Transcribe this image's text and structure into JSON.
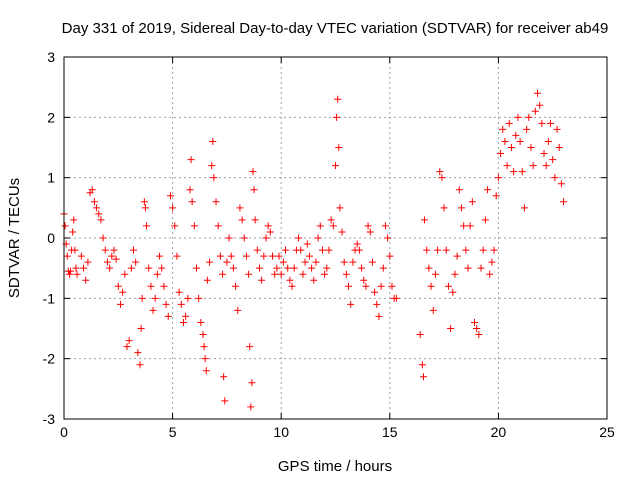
{
  "chart_data": {
    "type": "scatter",
    "title": "Day 331 of 2019, Sidereal Day-to-day VTEC variation (SDTVAR) for receiver ab49",
    "xlabel": "GPS time / hours",
    "ylabel": "SDTVAR / TECUs",
    "xlim": [
      0,
      25
    ],
    "ylim": [
      -3,
      3
    ],
    "xticks": [
      0,
      5,
      10,
      15,
      20,
      25
    ],
    "yticks": [
      -3,
      -2,
      -1,
      0,
      1,
      2,
      3
    ],
    "grid": true,
    "marker": "+",
    "marker_color": "#ff0000",
    "series": [
      {
        "name": "SDTVAR",
        "points": [
          [
            0.0,
            0.4
          ],
          [
            0.05,
            0.2
          ],
          [
            0.1,
            -0.1
          ],
          [
            0.15,
            -0.3
          ],
          [
            0.2,
            -0.55
          ],
          [
            0.25,
            -0.6
          ],
          [
            0.3,
            -0.55
          ],
          [
            0.35,
            -0.2
          ],
          [
            0.4,
            0.1
          ],
          [
            0.45,
            0.3
          ],
          [
            0.5,
            -0.2
          ],
          [
            0.55,
            -0.5
          ],
          [
            0.6,
            -0.6
          ],
          [
            0.8,
            -0.3
          ],
          [
            0.9,
            -0.5
          ],
          [
            1.0,
            -0.7
          ],
          [
            1.1,
            -0.4
          ],
          [
            1.2,
            0.75
          ],
          [
            1.3,
            0.8
          ],
          [
            1.4,
            0.6
          ],
          [
            1.5,
            0.5
          ],
          [
            1.6,
            0.4
          ],
          [
            1.7,
            0.3
          ],
          [
            1.8,
            0.0
          ],
          [
            1.9,
            -0.2
          ],
          [
            2.0,
            -0.4
          ],
          [
            2.1,
            -0.5
          ],
          [
            2.2,
            -0.3
          ],
          [
            2.3,
            -0.2
          ],
          [
            2.4,
            -0.35
          ],
          [
            2.5,
            -0.8
          ],
          [
            2.6,
            -1.1
          ],
          [
            2.7,
            -0.9
          ],
          [
            2.8,
            -0.6
          ],
          [
            2.9,
            -1.8
          ],
          [
            3.0,
            -1.7
          ],
          [
            3.1,
            -0.5
          ],
          [
            3.2,
            -0.2
          ],
          [
            3.3,
            -0.4
          ],
          [
            3.4,
            -1.9
          ],
          [
            3.5,
            -2.1
          ],
          [
            3.55,
            -1.5
          ],
          [
            3.6,
            -1.0
          ],
          [
            3.7,
            0.6
          ],
          [
            3.75,
            0.5
          ],
          [
            3.8,
            0.2
          ],
          [
            3.9,
            -0.5
          ],
          [
            4.0,
            -0.8
          ],
          [
            4.1,
            -1.2
          ],
          [
            4.2,
            -1.0
          ],
          [
            4.3,
            -0.6
          ],
          [
            4.4,
            -0.3
          ],
          [
            4.5,
            -0.5
          ],
          [
            4.6,
            -0.8
          ],
          [
            4.7,
            -1.1
          ],
          [
            4.8,
            -1.3
          ],
          [
            4.9,
            0.7
          ],
          [
            5.0,
            0.5
          ],
          [
            5.1,
            0.2
          ],
          [
            5.2,
            -0.3
          ],
          [
            5.3,
            -0.9
          ],
          [
            5.4,
            -1.1
          ],
          [
            5.5,
            -1.4
          ],
          [
            5.6,
            -1.3
          ],
          [
            5.7,
            -1.0
          ],
          [
            5.8,
            0.8
          ],
          [
            5.85,
            1.3
          ],
          [
            5.9,
            0.6
          ],
          [
            6.0,
            0.2
          ],
          [
            6.1,
            -0.5
          ],
          [
            6.2,
            -1.0
          ],
          [
            6.3,
            -1.4
          ],
          [
            6.4,
            -1.6
          ],
          [
            6.45,
            -1.8
          ],
          [
            6.5,
            -2.0
          ],
          [
            6.55,
            -2.2
          ],
          [
            6.6,
            -0.7
          ],
          [
            6.7,
            -0.4
          ],
          [
            6.8,
            1.2
          ],
          [
            6.85,
            1.6
          ],
          [
            6.9,
            1.0
          ],
          [
            7.0,
            0.6
          ],
          [
            7.1,
            0.2
          ],
          [
            7.2,
            -0.3
          ],
          [
            7.3,
            -0.6
          ],
          [
            7.35,
            -2.3
          ],
          [
            7.4,
            -2.7
          ],
          [
            7.5,
            -0.4
          ],
          [
            7.6,
            0.0
          ],
          [
            7.7,
            -0.3
          ],
          [
            7.8,
            -0.5
          ],
          [
            7.9,
            -0.8
          ],
          [
            8.0,
            -1.2
          ],
          [
            8.1,
            0.5
          ],
          [
            8.2,
            0.3
          ],
          [
            8.3,
            0.0
          ],
          [
            8.4,
            -0.3
          ],
          [
            8.5,
            -0.6
          ],
          [
            8.55,
            -1.8
          ],
          [
            8.6,
            -2.8
          ],
          [
            8.65,
            -2.4
          ],
          [
            8.7,
            1.1
          ],
          [
            8.75,
            0.8
          ],
          [
            8.8,
            0.3
          ],
          [
            8.9,
            -0.2
          ],
          [
            9.0,
            -0.5
          ],
          [
            9.1,
            -0.7
          ],
          [
            9.2,
            -0.3
          ],
          [
            9.3,
            0.0
          ],
          [
            9.4,
            0.2
          ],
          [
            9.5,
            0.1
          ],
          [
            9.6,
            -0.3
          ],
          [
            9.7,
            -0.6
          ],
          [
            9.8,
            -0.5
          ],
          [
            9.9,
            -0.3
          ],
          [
            10.0,
            -0.6
          ],
          [
            10.1,
            -0.4
          ],
          [
            10.2,
            -0.2
          ],
          [
            10.3,
            -0.5
          ],
          [
            10.4,
            -0.7
          ],
          [
            10.5,
            -0.8
          ],
          [
            10.6,
            -0.5
          ],
          [
            10.7,
            -0.2
          ],
          [
            10.8,
            0.0
          ],
          [
            10.9,
            -0.2
          ],
          [
            11.0,
            -0.6
          ],
          [
            11.1,
            -0.4
          ],
          [
            11.2,
            -0.1
          ],
          [
            11.3,
            -0.3
          ],
          [
            11.4,
            -0.5
          ],
          [
            11.5,
            -0.7
          ],
          [
            11.6,
            -0.4
          ],
          [
            11.7,
            0.0
          ],
          [
            11.8,
            0.2
          ],
          [
            11.9,
            -0.2
          ],
          [
            12.0,
            -0.6
          ],
          [
            12.1,
            -0.5
          ],
          [
            12.2,
            -0.2
          ],
          [
            12.3,
            0.3
          ],
          [
            12.4,
            0.2
          ],
          [
            12.5,
            1.2
          ],
          [
            12.55,
            2.0
          ],
          [
            12.6,
            2.3
          ],
          [
            12.65,
            1.5
          ],
          [
            12.7,
            0.5
          ],
          [
            12.8,
            0.1
          ],
          [
            12.9,
            -0.4
          ],
          [
            13.0,
            -0.6
          ],
          [
            13.1,
            -0.8
          ],
          [
            13.2,
            -1.1
          ],
          [
            13.3,
            -0.4
          ],
          [
            13.4,
            -0.2
          ],
          [
            13.5,
            -0.1
          ],
          [
            13.6,
            -0.2
          ],
          [
            13.7,
            -0.5
          ],
          [
            13.8,
            -0.7
          ],
          [
            13.9,
            -0.8
          ],
          [
            14.0,
            0.2
          ],
          [
            14.1,
            0.1
          ],
          [
            14.2,
            -0.4
          ],
          [
            14.3,
            -0.9
          ],
          [
            14.4,
            -1.1
          ],
          [
            14.5,
            -1.3
          ],
          [
            14.6,
            -0.8
          ],
          [
            14.7,
            -0.5
          ],
          [
            14.8,
            0.2
          ],
          [
            14.9,
            0.0
          ],
          [
            15.0,
            -0.3
          ],
          [
            15.1,
            -0.8
          ],
          [
            15.2,
            -1.0
          ],
          [
            15.3,
            -1.0
          ],
          [
            16.4,
            -1.6
          ],
          [
            16.5,
            -2.1
          ],
          [
            16.55,
            -2.3
          ],
          [
            16.6,
            0.3
          ],
          [
            16.7,
            -0.2
          ],
          [
            16.8,
            -0.5
          ],
          [
            16.9,
            -0.8
          ],
          [
            17.0,
            -1.2
          ],
          [
            17.1,
            -0.6
          ],
          [
            17.2,
            -0.2
          ],
          [
            17.3,
            1.1
          ],
          [
            17.4,
            1.0
          ],
          [
            17.5,
            0.5
          ],
          [
            17.6,
            -0.2
          ],
          [
            17.7,
            -0.8
          ],
          [
            17.8,
            -1.5
          ],
          [
            17.9,
            -0.9
          ],
          [
            18.0,
            -0.6
          ],
          [
            18.1,
            -0.3
          ],
          [
            18.2,
            0.8
          ],
          [
            18.3,
            0.5
          ],
          [
            18.4,
            0.2
          ],
          [
            18.5,
            -0.2
          ],
          [
            18.6,
            -0.5
          ],
          [
            18.7,
            0.2
          ],
          [
            18.8,
            0.6
          ],
          [
            18.9,
            -1.4
          ],
          [
            19.0,
            -1.5
          ],
          [
            19.1,
            -1.6
          ],
          [
            19.2,
            -0.5
          ],
          [
            19.3,
            -0.2
          ],
          [
            19.4,
            0.3
          ],
          [
            19.5,
            0.8
          ],
          [
            19.6,
            -0.6
          ],
          [
            19.7,
            -0.4
          ],
          [
            19.8,
            -0.2
          ],
          [
            19.9,
            0.7
          ],
          [
            20.0,
            1.0
          ],
          [
            20.1,
            1.4
          ],
          [
            20.2,
            1.8
          ],
          [
            20.3,
            1.6
          ],
          [
            20.4,
            1.2
          ],
          [
            20.5,
            1.9
          ],
          [
            20.6,
            1.5
          ],
          [
            20.7,
            1.1
          ],
          [
            20.8,
            1.7
          ],
          [
            20.9,
            2.0
          ],
          [
            21.0,
            1.6
          ],
          [
            21.1,
            1.1
          ],
          [
            21.2,
            0.5
          ],
          [
            21.3,
            1.8
          ],
          [
            21.4,
            2.0
          ],
          [
            21.5,
            1.5
          ],
          [
            21.6,
            1.2
          ],
          [
            21.7,
            2.1
          ],
          [
            21.8,
            2.4
          ],
          [
            21.9,
            2.2
          ],
          [
            22.0,
            1.9
          ],
          [
            22.1,
            1.4
          ],
          [
            22.2,
            1.2
          ],
          [
            22.3,
            1.6
          ],
          [
            22.4,
            1.9
          ],
          [
            22.5,
            1.3
          ],
          [
            22.6,
            1.0
          ],
          [
            22.7,
            1.8
          ],
          [
            22.8,
            1.5
          ],
          [
            22.9,
            0.9
          ],
          [
            23.0,
            0.6
          ]
        ]
      }
    ]
  }
}
